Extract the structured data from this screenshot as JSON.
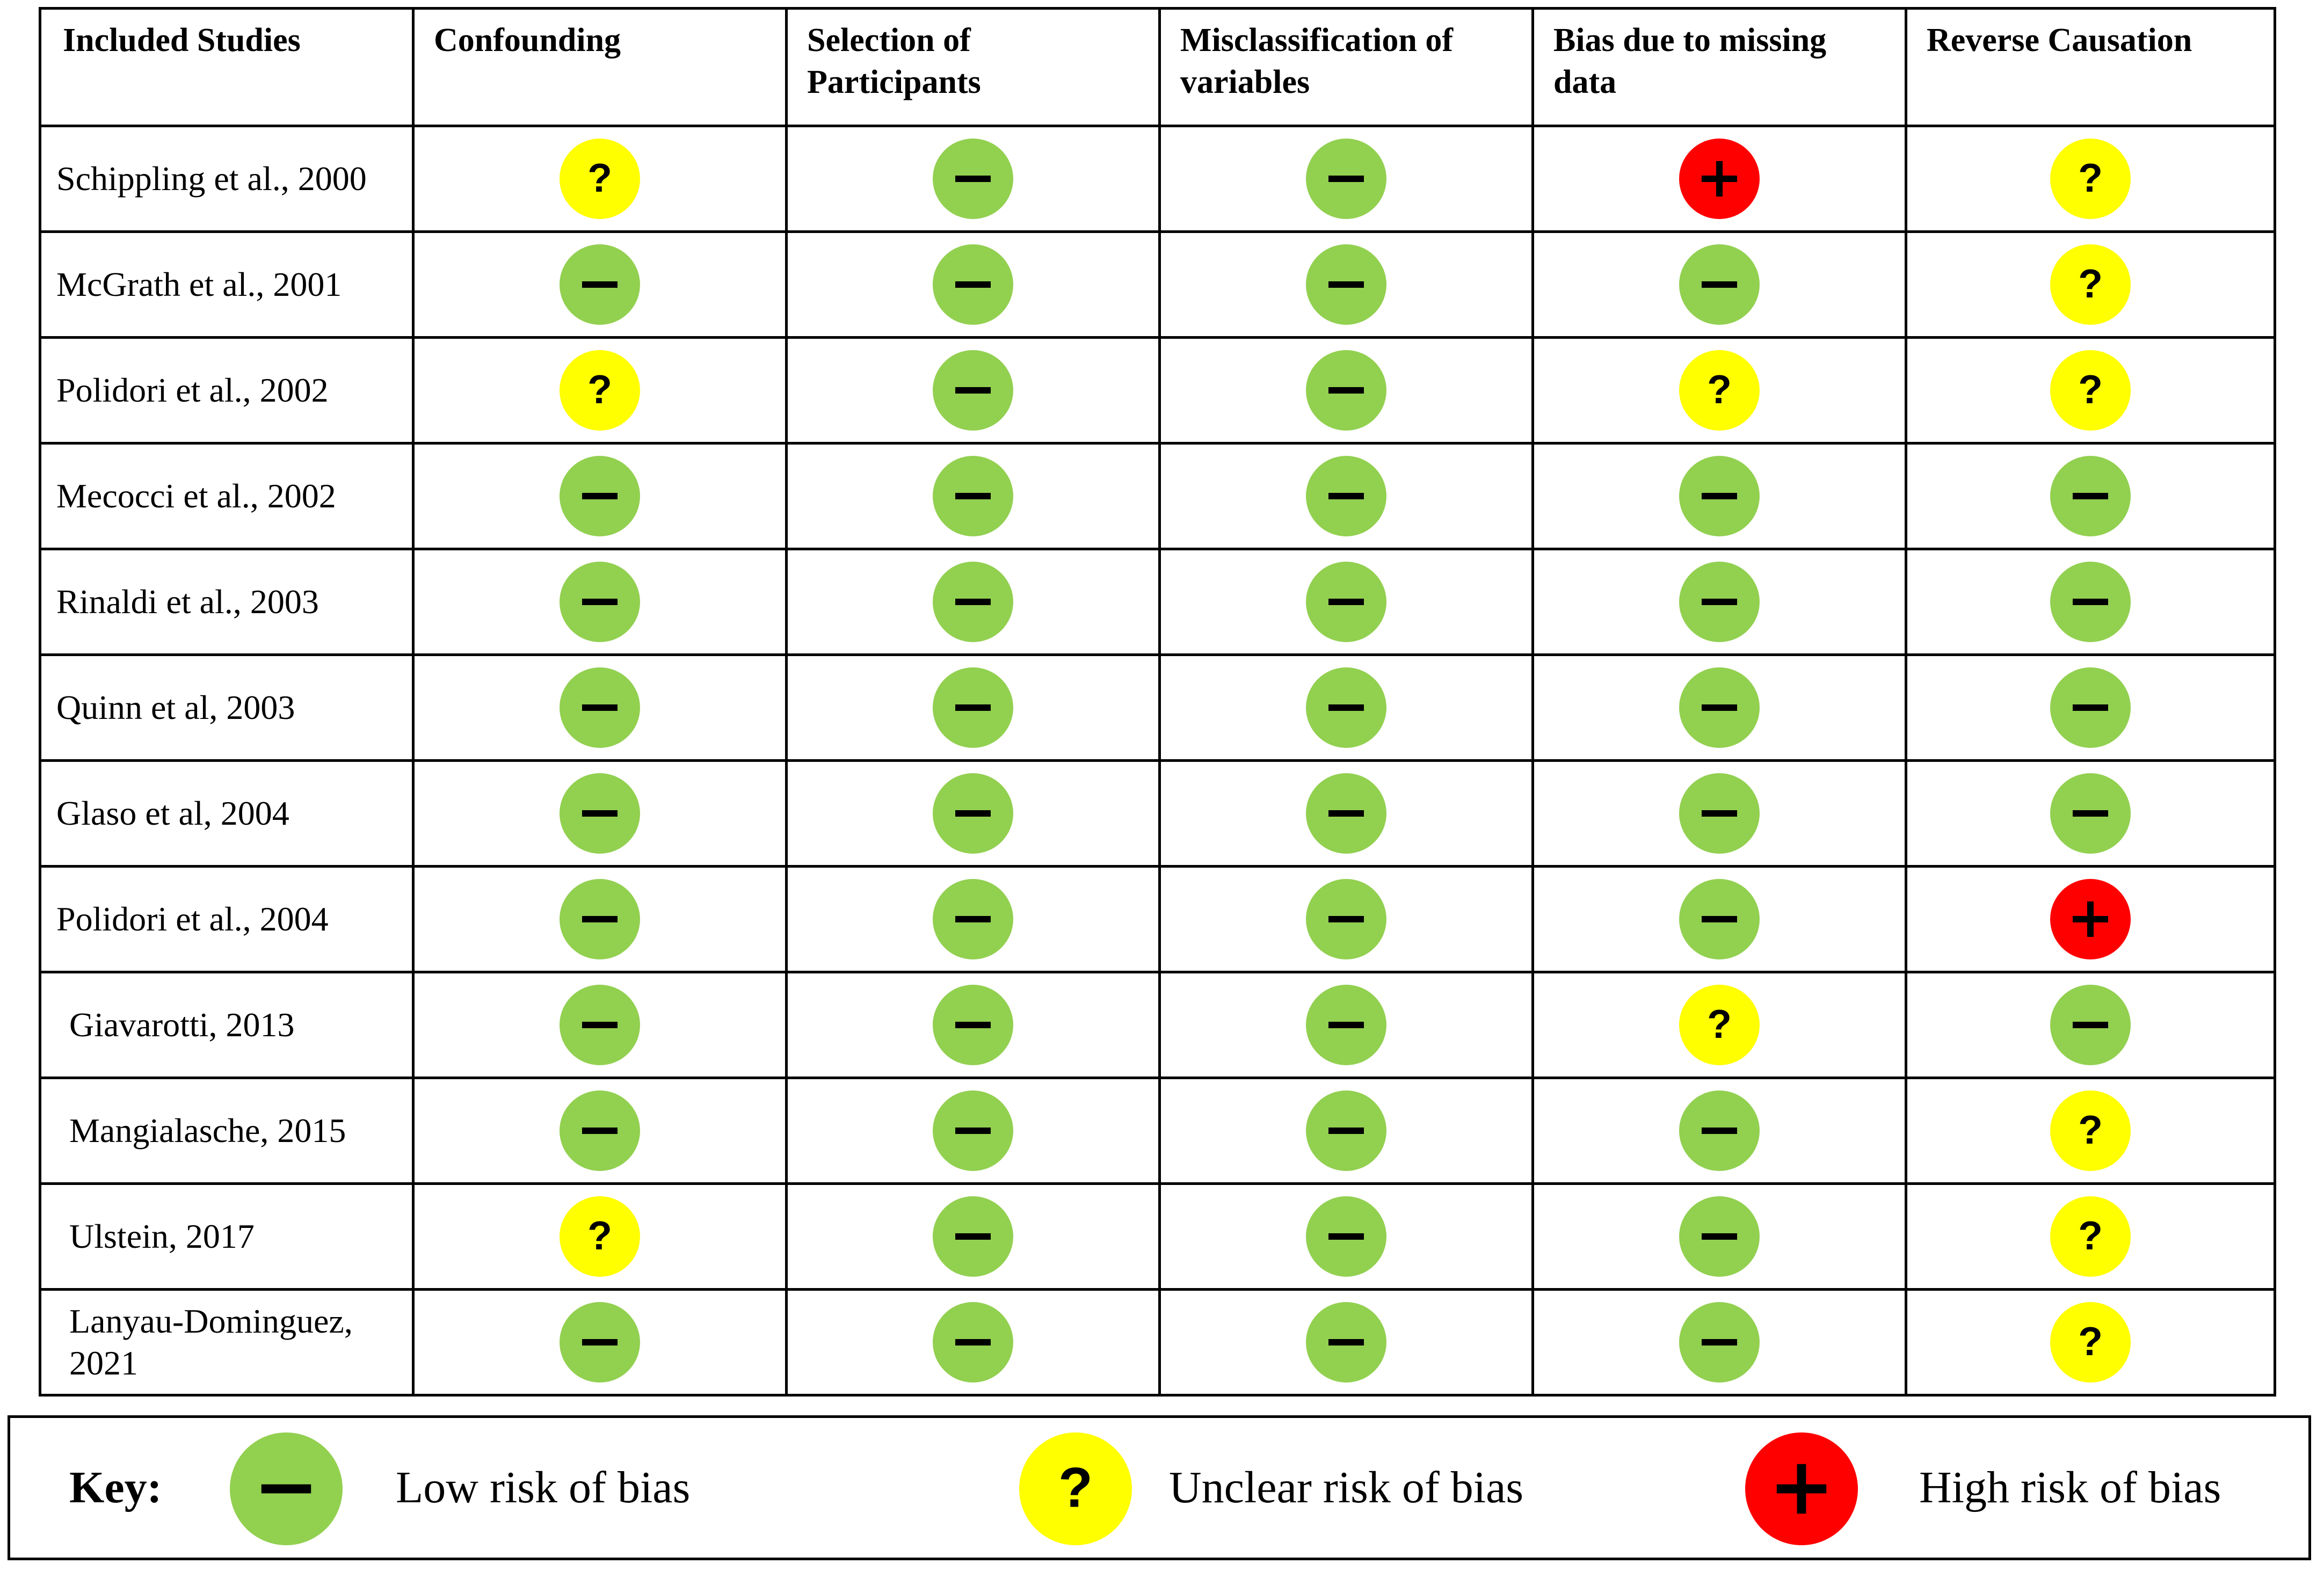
{
  "table": {
    "headers": [
      "Included Studies",
      "Confounding",
      "Selection of\nParticipants",
      "Misclassification of\nvariables",
      "Bias due to missing\ndata",
      "Reverse Causation"
    ],
    "rows": [
      {
        "study": "Schippling et al., 2000",
        "judgements": [
          "unclear",
          "low",
          "low",
          "high",
          "unclear"
        ]
      },
      {
        "study": "McGrath et al., 2001",
        "judgements": [
          "low",
          "low",
          "low",
          "low",
          "unclear"
        ]
      },
      {
        "study": "Polidori et al., 2002",
        "judgements": [
          "unclear",
          "low",
          "low",
          "unclear",
          "unclear"
        ]
      },
      {
        "study": "Mecocci et al., 2002",
        "judgements": [
          "low",
          "low",
          "low",
          "low",
          "low"
        ]
      },
      {
        "study": "Rinaldi et al., 2003",
        "judgements": [
          "low",
          "low",
          "low",
          "low",
          "low"
        ]
      },
      {
        "study": "Quinn et al, 2003",
        "judgements": [
          "low",
          "low",
          "low",
          "low",
          "low"
        ]
      },
      {
        "study": "Glaso et al, 2004",
        "judgements": [
          "low",
          "low",
          "low",
          "low",
          "low"
        ]
      },
      {
        "study": "Polidori et al., 2004",
        "judgements": [
          "low",
          "low",
          "low",
          "low",
          "high"
        ]
      },
      {
        "study": "Giavarotti, 2013",
        "judgements": [
          "low",
          "low",
          "low",
          "unclear",
          "low"
        ]
      },
      {
        "study": "Mangialasche, 2015",
        "judgements": [
          "low",
          "low",
          "low",
          "low",
          "unclear"
        ]
      },
      {
        "study": "Ulstein, 2017",
        "judgements": [
          "unclear",
          "low",
          "low",
          "low",
          "unclear"
        ]
      },
      {
        "study": "Lanyau-Dominguez,\n2021",
        "judgements": [
          "low",
          "low",
          "low",
          "low",
          "unclear"
        ]
      }
    ]
  },
  "key": {
    "title": "Key:",
    "items": [
      {
        "level": "low",
        "label": "Low risk of bias"
      },
      {
        "level": "unclear",
        "label": "Unclear risk of bias"
      },
      {
        "level": "high",
        "label": "High risk of bias"
      }
    ]
  },
  "symbols": {
    "low": {
      "color": "#92d050",
      "glyph": "minus-icon"
    },
    "unclear": {
      "color": "#ffff00",
      "glyph": "question-icon"
    },
    "high": {
      "color": "#ff0000",
      "glyph": "plus-icon"
    }
  }
}
